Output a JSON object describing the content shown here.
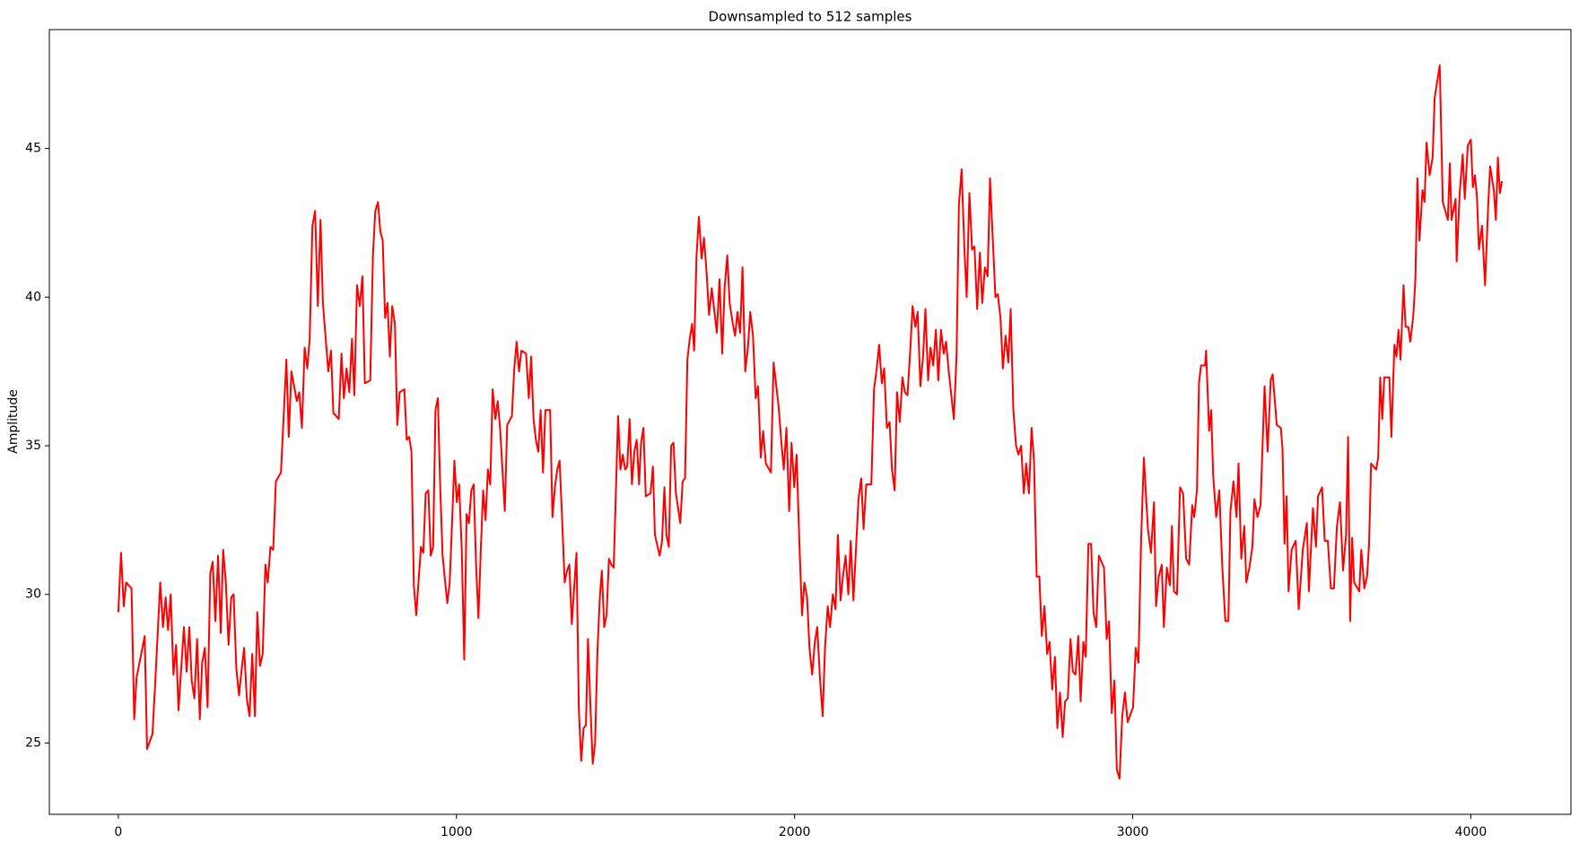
{
  "chart_data": {
    "type": "line",
    "title": "Downsampled to 512 samples",
    "y_label": "Amplitude",
    "color": "red",
    "grid": false,
    "xlim": [
      -204,
      4296
    ],
    "ylim": [
      22.6,
      49.0
    ],
    "xticks": [
      0,
      1000,
      2000,
      3000,
      4000
    ],
    "yticks": [
      25,
      30,
      35,
      40,
      45
    ],
    "x": [
      0,
      8,
      16,
      23,
      39,
      47,
      54,
      78,
      85,
      101,
      109,
      124,
      132,
      140,
      147,
      155,
      163,
      171,
      178,
      186,
      194,
      202,
      210,
      217,
      225,
      233,
      241,
      248,
      256,
      264,
      272,
      279,
      287,
      295,
      303,
      310,
      318,
      326,
      334,
      341,
      349,
      357,
      365,
      372,
      380,
      388,
      396,
      404,
      411,
      419,
      427,
      435,
      442,
      450,
      458,
      466,
      481,
      497,
      504,
      512,
      528,
      535,
      543,
      551,
      559,
      566,
      574,
      582,
      590,
      598,
      605,
      621,
      629,
      636,
      652,
      660,
      667,
      675,
      683,
      691,
      698,
      706,
      714,
      722,
      729,
      745,
      753,
      760,
      768,
      775,
      782,
      789,
      796,
      803,
      810,
      818,
      825,
      832,
      846,
      853,
      860,
      867,
      874,
      881,
      895,
      902,
      909,
      917,
      924,
      931,
      938,
      945,
      952,
      959,
      973,
      980,
      987,
      994,
      1001,
      1008,
      1016,
      1023,
      1030,
      1037,
      1044,
      1051,
      1058,
      1065,
      1072,
      1079,
      1086,
      1093,
      1100,
      1107,
      1115,
      1122,
      1129,
      1136,
      1143,
      1150,
      1164,
      1171,
      1178,
      1185,
      1192,
      1206,
      1214,
      1221,
      1228,
      1235,
      1242,
      1249,
      1256,
      1263,
      1277,
      1284,
      1291,
      1298,
      1305,
      1313,
      1320,
      1327,
      1334,
      1341,
      1355,
      1362,
      1369,
      1376,
      1383,
      1389,
      1396,
      1403,
      1410,
      1417,
      1424,
      1430,
      1437,
      1444,
      1451,
      1458,
      1465,
      1478,
      1485,
      1492,
      1499,
      1505,
      1512,
      1519,
      1526,
      1533,
      1540,
      1546,
      1553,
      1560,
      1574,
      1581,
      1587,
      1601,
      1608,
      1615,
      1621,
      1628,
      1635,
      1642,
      1649,
      1662,
      1669,
      1676,
      1683,
      1690,
      1697,
      1703,
      1710,
      1717,
      1725,
      1732,
      1740,
      1747,
      1755,
      1763,
      1770,
      1778,
      1786,
      1793,
      1801,
      1808,
      1816,
      1824,
      1831,
      1839,
      1846,
      1854,
      1862,
      1869,
      1877,
      1885,
      1892,
      1900,
      1907,
      1915,
      1930,
      1938,
      1945,
      1953,
      1961,
      1968,
      1976,
      1984,
      1991,
      1999,
      2006,
      2014,
      2022,
      2029,
      2037,
      2044,
      2052,
      2060,
      2067,
      2075,
      2083,
      2090,
      2098,
      2105,
      2113,
      2121,
      2128,
      2136,
      2143,
      2151,
      2159,
      2166,
      2174,
      2189,
      2197,
      2204,
      2212,
      2227,
      2235,
      2243,
      2250,
      2258,
      2265,
      2273,
      2281,
      2288,
      2296,
      2303,
      2311,
      2319,
      2326,
      2334,
      2342,
      2349,
      2357,
      2364,
      2372,
      2380,
      2387,
      2395,
      2402,
      2410,
      2418,
      2425,
      2433,
      2441,
      2448,
      2456,
      2471,
      2479,
      2486,
      2494,
      2502,
      2509,
      2517,
      2525,
      2532,
      2540,
      2548,
      2555,
      2563,
      2571,
      2578,
      2586,
      2594,
      2601,
      2609,
      2616,
      2624,
      2632,
      2639,
      2647,
      2655,
      2662,
      2670,
      2678,
      2685,
      2693,
      2701,
      2708,
      2716,
      2724,
      2731,
      2739,
      2747,
      2754,
      2762,
      2770,
      2777,
      2785,
      2793,
      2800,
      2808,
      2816,
      2823,
      2831,
      2839,
      2846,
      2854,
      2861,
      2869,
      2877,
      2884,
      2892,
      2900,
      2915,
      2923,
      2930,
      2938,
      2946,
      2953,
      2961,
      2969,
      2977,
      2985,
      3001,
      3009,
      3017,
      3025,
      3033,
      3045,
      3054,
      3063,
      3069,
      3077,
      3086,
      3092,
      3101,
      3110,
      3116,
      3122,
      3131,
      3140,
      3149,
      3158,
      3167,
      3176,
      3182,
      3190,
      3196,
      3202,
      3214,
      3217,
      3226,
      3232,
      3238,
      3247,
      3256,
      3265,
      3274,
      3283,
      3289,
      3298,
      3307,
      3313,
      3321,
      3330,
      3336,
      3345,
      3354,
      3360,
      3369,
      3378,
      3390,
      3399,
      3408,
      3414,
      3426,
      3438,
      3443,
      3449,
      3455,
      3461,
      3470,
      3482,
      3491,
      3503,
      3515,
      3521,
      3533,
      3542,
      3548,
      3560,
      3568,
      3577,
      3586,
      3595,
      3604,
      3613,
      3622,
      3631,
      3637,
      3643,
      3649,
      3655,
      3670,
      3676,
      3685,
      3693,
      3699,
      3705,
      3720,
      3726,
      3732,
      3738,
      3744,
      3759,
      3765,
      3774,
      3780,
      3786,
      3792,
      3801,
      3807,
      3815,
      3821,
      3830,
      3836,
      3842,
      3848,
      3857,
      3863,
      3869,
      3878,
      3887,
      3893,
      3908,
      3917,
      3932,
      3938,
      3943,
      3955,
      3958,
      3967,
      3976,
      3982,
      3991,
      4000,
      4006,
      4012,
      4018,
      4024,
      4033,
      4042,
      4051,
      4057,
      4068,
      4074,
      4080,
      4086,
      4092
    ],
    "values": [
      29.4,
      31.4,
      29.6,
      30.4,
      30.2,
      25.8,
      27.2,
      28.6,
      24.8,
      25.3,
      27.0,
      30.4,
      28.9,
      29.9,
      28.8,
      30.0,
      27.3,
      28.3,
      26.1,
      27.5,
      28.9,
      27.4,
      28.9,
      27.1,
      26.5,
      28.5,
      25.8,
      27.7,
      28.2,
      26.2,
      30.7,
      31.1,
      29.1,
      31.3,
      28.7,
      31.5,
      30.4,
      28.3,
      29.9,
      30.0,
      27.5,
      26.6,
      27.5,
      28.2,
      26.5,
      25.9,
      28.0,
      25.9,
      29.4,
      27.6,
      28.0,
      31.0,
      30.4,
      31.6,
      31.5,
      33.8,
      34.1,
      37.9,
      35.3,
      37.5,
      36.5,
      36.8,
      35.6,
      38.3,
      37.6,
      38.6,
      42.4,
      42.9,
      39.7,
      42.6,
      39.8,
      37.5,
      38.2,
      36.1,
      35.9,
      38.1,
      36.6,
      37.6,
      36.8,
      38.6,
      36.7,
      40.4,
      39.7,
      40.7,
      37.1,
      37.2,
      41.4,
      42.9,
      43.2,
      42.2,
      41.9,
      39.3,
      39.8,
      38.0,
      39.7,
      39.1,
      35.7,
      36.8,
      36.9,
      35.2,
      35.3,
      34.8,
      30.3,
      29.3,
      31.6,
      31.4,
      33.4,
      33.5,
      31.3,
      31.6,
      36.2,
      36.6,
      33.6,
      31.3,
      29.7,
      30.4,
      32.4,
      34.5,
      33.1,
      33.7,
      31.4,
      27.8,
      32.7,
      32.4,
      33.5,
      33.7,
      31.0,
      29.2,
      31.5,
      33.5,
      32.5,
      34.2,
      33.7,
      36.9,
      35.9,
      36.5,
      35.6,
      34.2,
      32.8,
      35.7,
      36.0,
      37.6,
      38.5,
      37.5,
      38.2,
      38.1,
      36.6,
      38.0,
      35.9,
      35.2,
      34.8,
      36.2,
      34.1,
      36.2,
      36.2,
      32.6,
      33.6,
      34.2,
      34.5,
      32.4,
      30.4,
      30.8,
      31.0,
      29.0,
      31.4,
      26.1,
      24.4,
      25.5,
      25.6,
      28.5,
      26.3,
      24.3,
      25.0,
      28.1,
      29.9,
      30.8,
      28.9,
      29.3,
      31.2,
      31.0,
      30.9,
      36.0,
      34.2,
      34.7,
      34.2,
      34.3,
      35.9,
      33.7,
      34.8,
      35.2,
      33.7,
      35.1,
      35.6,
      33.3,
      33.4,
      34.3,
      32.0,
      31.3,
      31.8,
      33.6,
      32.0,
      31.6,
      35.0,
      35.1,
      33.4,
      32.4,
      33.8,
      33.9,
      37.9,
      38.6,
      39.1,
      38.2,
      41.4,
      42.7,
      41.3,
      42.0,
      40.8,
      39.4,
      40.3,
      39.5,
      38.8,
      40.6,
      38.1,
      40.3,
      41.4,
      39.8,
      39.2,
      38.7,
      39.5,
      38.8,
      41.0,
      37.5,
      38.3,
      39.5,
      38.7,
      36.6,
      37.0,
      34.6,
      35.5,
      34.4,
      34.1,
      37.8,
      37.1,
      36.3,
      35.1,
      34.2,
      35.6,
      32.8,
      35.1,
      33.6,
      34.7,
      31.8,
      29.3,
      30.4,
      29.9,
      28.2,
      27.3,
      28.4,
      28.9,
      27.2,
      25.9,
      28.2,
      29.6,
      28.9,
      30.0,
      29.5,
      32.0,
      29.8,
      30.6,
      31.3,
      30.0,
      31.8,
      29.8,
      33.2,
      33.9,
      32.2,
      33.7,
      33.7,
      36.9,
      37.6,
      38.4,
      37.1,
      37.6,
      35.6,
      35.8,
      34.2,
      33.5,
      36.8,
      35.8,
      37.3,
      36.8,
      36.7,
      38.2,
      39.7,
      39.0,
      39.5,
      37.0,
      38.0,
      39.6,
      37.2,
      38.3,
      37.7,
      38.9,
      37.2,
      38.9,
      38.1,
      38.5,
      37.5,
      35.9,
      38.0,
      43.1,
      44.3,
      41.7,
      40.0,
      43.5,
      41.6,
      41.7,
      39.6,
      41.5,
      39.8,
      41.0,
      40.7,
      44.0,
      42.0,
      40.0,
      40.1,
      39.3,
      37.6,
      38.7,
      37.8,
      39.6,
      36.2,
      35.0,
      34.7,
      35.0,
      33.4,
      34.4,
      33.4,
      35.6,
      34.5,
      30.6,
      30.6,
      28.6,
      29.6,
      28.0,
      28.4,
      26.8,
      27.9,
      25.5,
      26.7,
      25.2,
      26.4,
      26.5,
      28.5,
      27.4,
      27.3,
      28.6,
      26.4,
      28.4,
      27.9,
      31.7,
      31.7,
      29.4,
      28.9,
      31.3,
      30.9,
      28.5,
      29.1,
      26.0,
      27.1,
      24.1,
      23.8,
      25.9,
      26.7,
      25.7,
      26.2,
      28.2,
      27.7,
      31.9,
      34.6,
      32.2,
      31.4,
      33.1,
      29.6,
      30.6,
      31.0,
      28.9,
      30.9,
      30.3,
      32.3,
      30.1,
      30.0,
      33.6,
      33.4,
      31.2,
      31.0,
      33.0,
      32.6,
      33.5,
      37.1,
      37.7,
      37.7,
      38.2,
      35.5,
      36.2,
      34.0,
      32.6,
      33.5,
      30.9,
      29.1,
      29.1,
      32.8,
      33.8,
      32.6,
      34.4,
      31.2,
      32.3,
      30.4,
      30.9,
      31.6,
      33.2,
      32.6,
      33.0,
      37.0,
      34.8,
      37.2,
      37.4,
      35.7,
      35.6,
      34.9,
      31.7,
      33.3,
      30.1,
      31.5,
      31.8,
      29.5,
      31.5,
      32.4,
      30.1,
      32.9,
      31.6,
      33.3,
      33.6,
      31.8,
      31.8,
      30.2,
      30.2,
      32.3,
      33.1,
      30.8,
      32.0,
      35.3,
      29.1,
      31.9,
      30.4,
      30.1,
      31.5,
      30.2,
      30.6,
      31.7,
      34.4,
      34.2,
      34.6,
      37.3,
      35.9,
      37.3,
      37.3,
      35.3,
      38.4,
      38.0,
      38.9,
      37.9,
      40.4,
      39.0,
      39.0,
      38.5,
      39.4,
      40.6,
      44.0,
      41.9,
      43.6,
      43.2,
      45.2,
      44.1,
      44.7,
      46.7,
      47.8,
      43.2,
      42.6,
      44.5,
      42.6,
      43.3,
      41.2,
      43.5,
      44.8,
      43.3,
      45.1,
      45.3,
      43.7,
      44.1,
      43.4,
      41.6,
      42.4,
      40.4,
      43.0,
      44.4,
      43.6,
      42.6,
      44.7,
      43.5,
      43.9
    ]
  }
}
